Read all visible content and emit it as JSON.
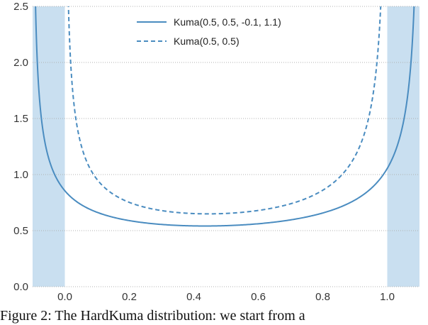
{
  "chart_data": {
    "type": "line",
    "title": "",
    "xlabel": "",
    "ylabel": "",
    "xlim": [
      -0.1,
      1.1
    ],
    "ylim": [
      0.0,
      2.5
    ],
    "xticks": [
      "0.0",
      "0.2",
      "0.4",
      "0.6",
      "0.8",
      "1.0"
    ],
    "xtick_values": [
      0.0,
      0.2,
      0.4,
      0.6,
      0.8,
      1.0
    ],
    "yticks": [
      "0.0",
      "0.5",
      "1.0",
      "1.5",
      "2.0",
      "2.5"
    ],
    "ytick_values": [
      0.0,
      0.5,
      1.0,
      1.5,
      2.0,
      2.5
    ],
    "grid": "horizontal dotted",
    "legend_position": "top-center",
    "shaded_regions": [
      {
        "x_start": -0.1,
        "x_end": 0.0,
        "color": "#c9dff0"
      },
      {
        "x_start": 1.0,
        "x_end": 1.1,
        "color": "#c9dff0"
      }
    ],
    "series": [
      {
        "name": "Kuma(0.5, 0.5, -0.1, 1.1)",
        "style": "solid",
        "color": "#4a8cc0",
        "params": {
          "a": 0.5,
          "b": 0.5,
          "l": -0.1,
          "r": 1.1
        }
      },
      {
        "name": "Kuma(0.5, 0.5)",
        "style": "dashed",
        "color": "#4a8cc0",
        "params": {
          "a": 0.5,
          "b": 0.5,
          "l": 0.0,
          "r": 1.0
        }
      }
    ]
  },
  "caption": "Figure 2: The HardKuma distribution: we start from a"
}
